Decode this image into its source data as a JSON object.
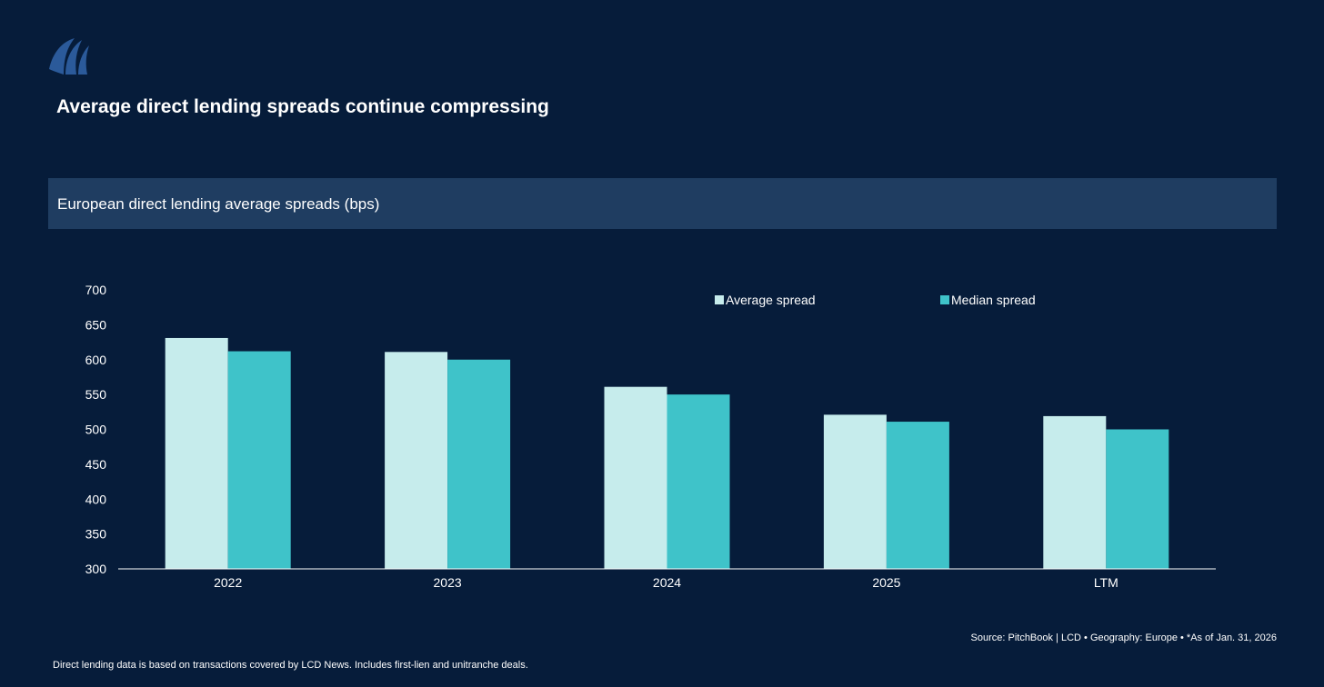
{
  "page": {
    "headline": "Average direct lending spreads continue compressing",
    "subtitle": "European direct lending average spreads (bps)",
    "source": "Source: PitchBook | LCD  •  Geography: Europe  •  *As of Jan. 31, 2026",
    "footnote": "Direct lending data is based on transactions covered by LCD News. Includes first-lien and unitranche deals."
  },
  "logo": {
    "icon": "sail-logo-icon",
    "color": "#2b5a9a"
  },
  "chart_data": {
    "type": "bar",
    "title": "European direct lending average spreads (bps)",
    "categories": [
      "2022",
      "2023",
      "2024",
      "2025",
      "LTM"
    ],
    "series": [
      {
        "name": "Average spread",
        "color": "#c6ecec",
        "values": [
          631,
          611,
          561,
          521,
          519
        ]
      },
      {
        "name": "Median spread",
        "color": "#3fc3c9",
        "values": [
          612,
          600,
          550,
          511,
          500
        ]
      }
    ],
    "ylim": [
      300,
      700
    ],
    "yticks": [
      300,
      350,
      400,
      450,
      500,
      550,
      600,
      650,
      700
    ],
    "xlabel": "",
    "ylabel": "",
    "grid": false,
    "legend": "top-right"
  }
}
